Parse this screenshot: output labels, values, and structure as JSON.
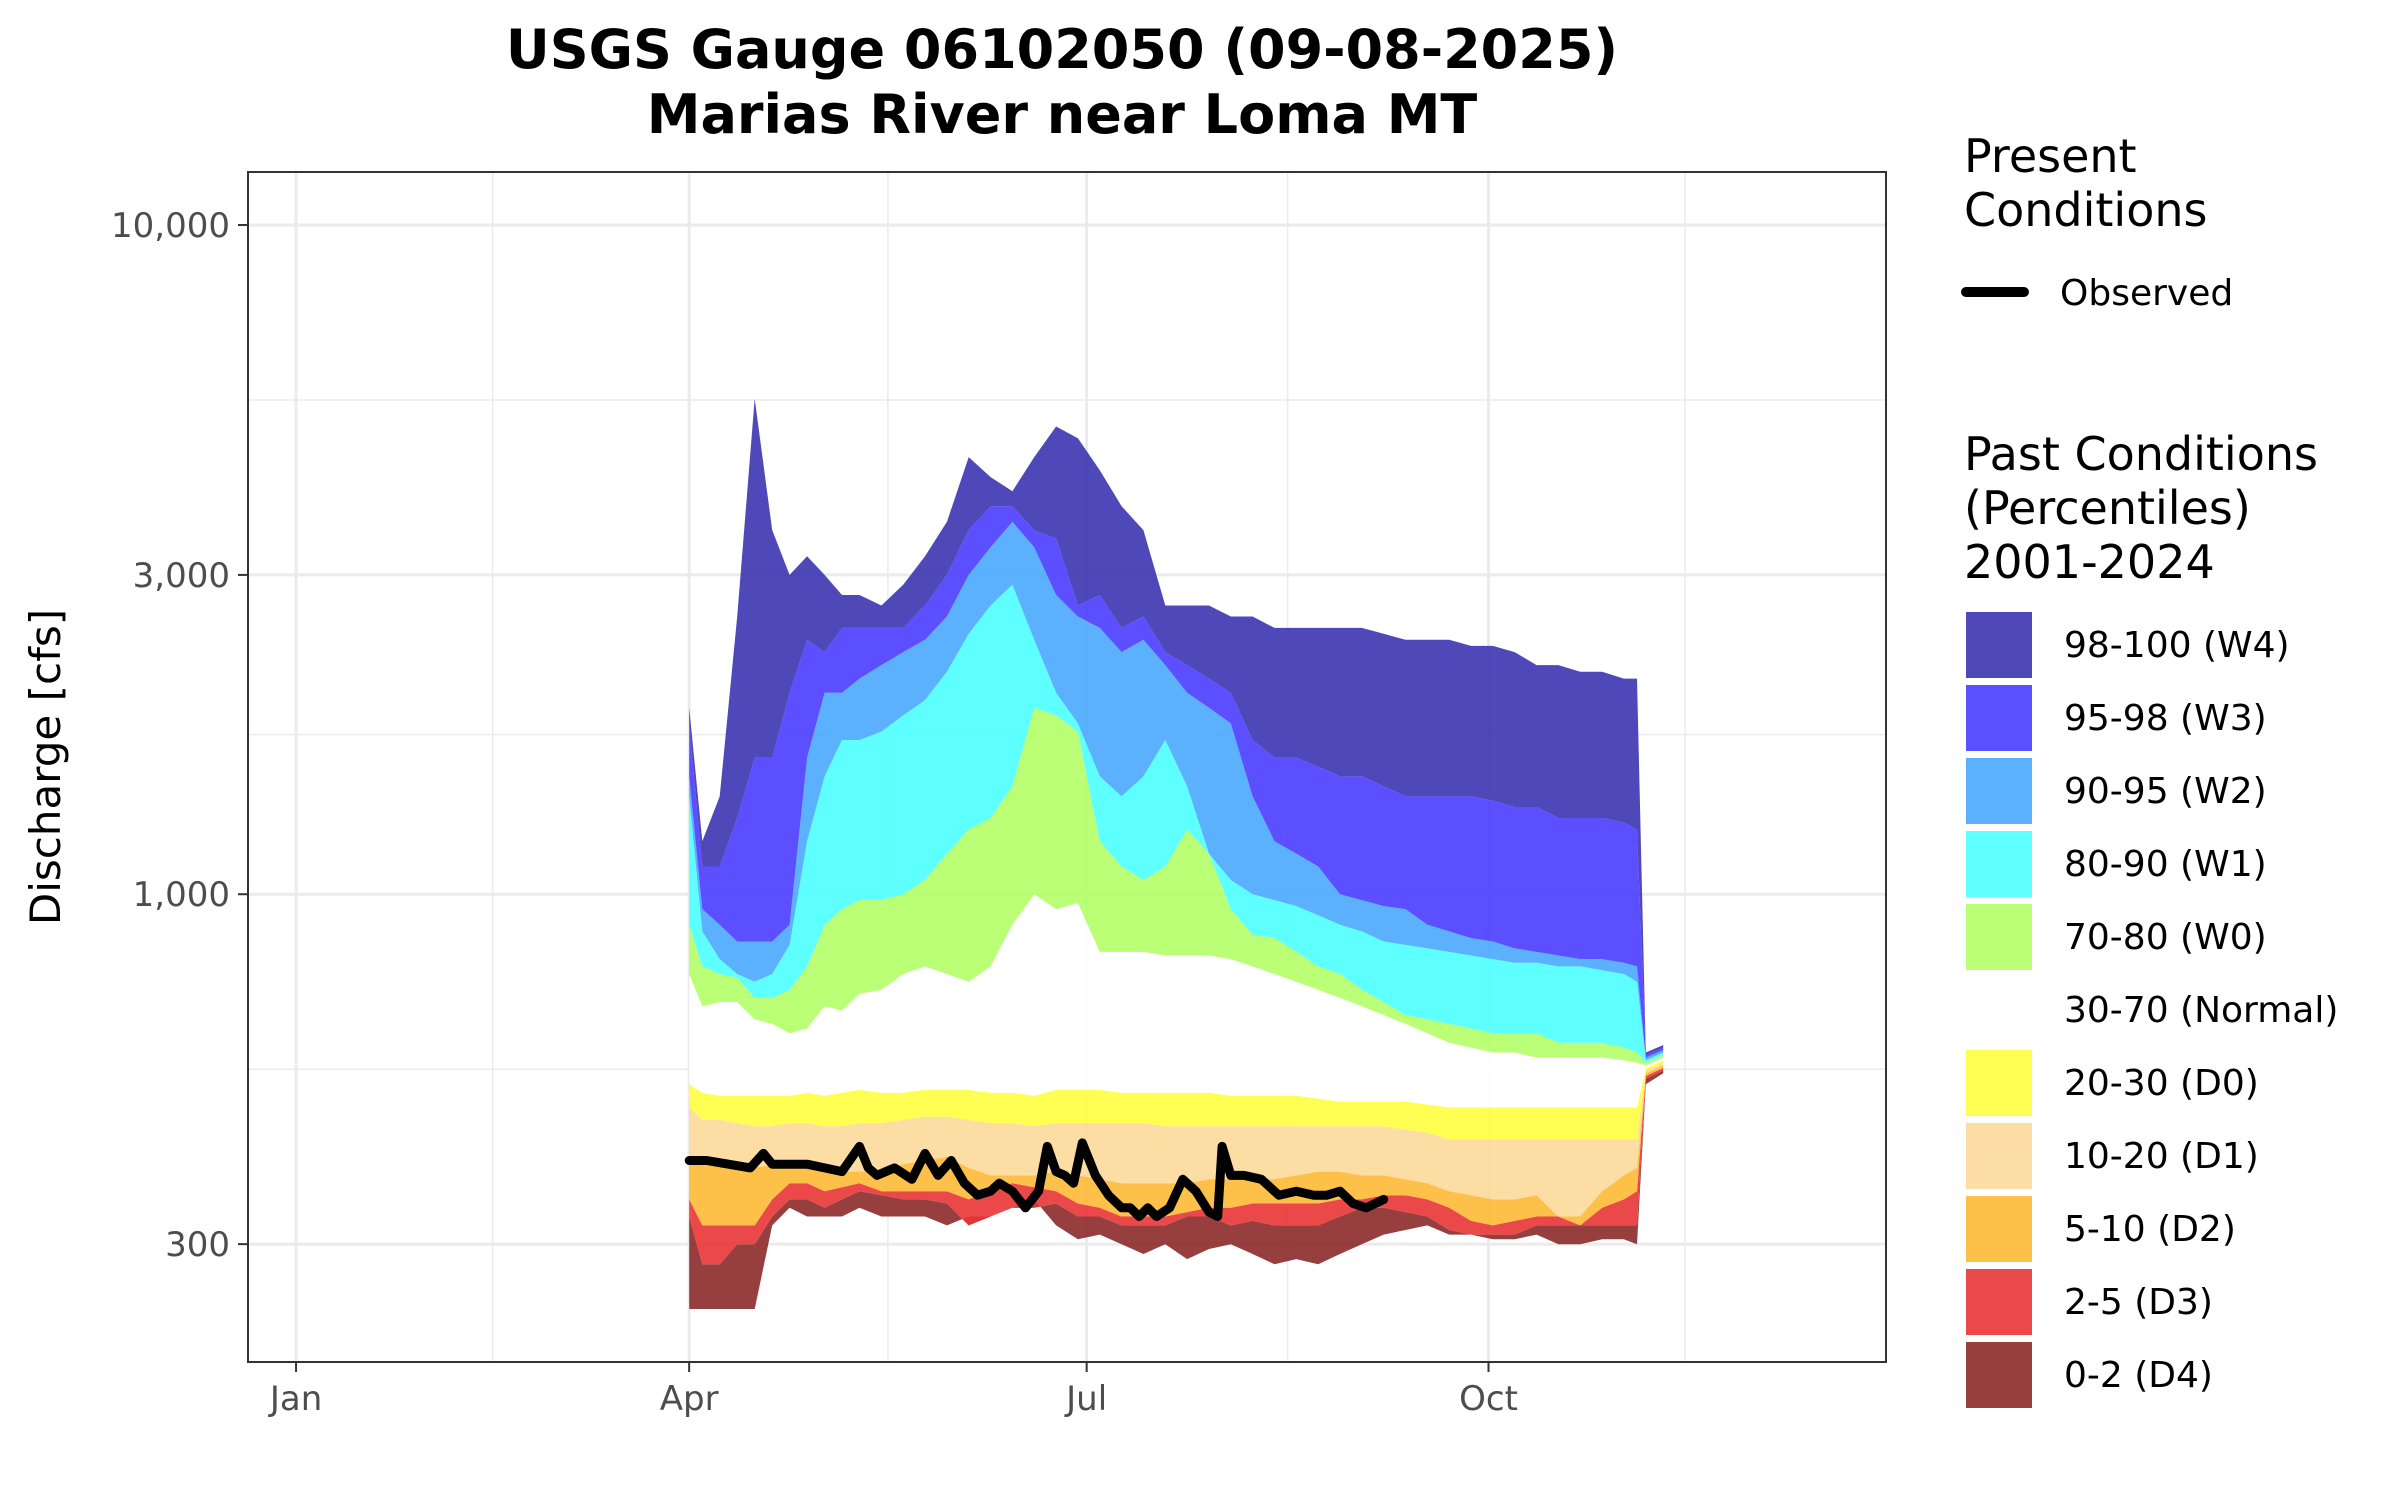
{
  "chart_data": {
    "type": "area",
    "title_line1": "USGS Gauge 06102050 (09-08-2025)",
    "title_line2": "Marias River near Loma MT",
    "ylabel": "Discharge [cfs]",
    "xlabel": "",
    "y_scale": "log",
    "ylim": [
      200,
      12000
    ],
    "xlim_doy": [
      -10,
      365
    ],
    "grid": true,
    "legend_position": "right",
    "x_ticks": [
      {
        "label": "Jan",
        "doy": 1
      },
      {
        "label": "Apr",
        "doy": 91
      },
      {
        "label": "Jul",
        "doy": 182
      },
      {
        "label": "Oct",
        "doy": 274
      }
    ],
    "y_ticks": [
      {
        "label": "10,000",
        "value": 10000
      },
      {
        "label": "3,000",
        "value": 3000
      },
      {
        "label": "1,000",
        "value": 1000
      },
      {
        "label": "300",
        "value": 300
      }
    ],
    "legend_present_title": "Present\nConditions",
    "legend_observed_label": "Observed",
    "legend_past_title": "Past Conditions\n(Percentiles)\n2001-2024",
    "bands": [
      {
        "label": "98-100 (W4)",
        "color": "#3b34b0"
      },
      {
        "label": "95-98 (W3)",
        "color": "#4a3cff"
      },
      {
        "label": "90-95 (W2)",
        "color": "#4aa8ff"
      },
      {
        "label": "80-90 (W1)",
        "color": "#4dffff"
      },
      {
        "label": "70-80 (W0)",
        "color": "#b2ff66"
      },
      {
        "label": "30-70 (Normal)",
        "color": "#ffffff"
      },
      {
        "label": "20-30 (D0)",
        "color": "#ffff40"
      },
      {
        "label": "10-20 (D1)",
        "color": "#fcd999"
      },
      {
        "label": "5-10 (D2)",
        "color": "#fdb935"
      },
      {
        "label": "2-5 (D3)",
        "color": "#e93535"
      },
      {
        "label": "0-2 (D4)",
        "color": "#8c2a2a"
      }
    ],
    "percentile_x_doy": [
      91,
      94,
      98,
      102,
      106,
      110,
      114,
      118,
      122,
      126,
      130,
      135,
      140,
      145,
      150,
      155,
      160,
      165,
      170,
      175,
      180,
      185,
      190,
      195,
      200,
      205,
      210,
      215,
      220,
      225,
      230,
      235,
      240,
      245,
      250,
      255,
      260,
      265,
      270,
      275,
      280,
      285,
      290,
      295,
      300,
      305,
      308,
      310,
      314
    ],
    "percentile_bounds": {
      "p0": [
        240,
        240,
        240,
        240,
        240,
        320,
        340,
        330,
        330,
        330,
        340,
        330,
        330,
        330,
        320,
        330,
        330,
        340,
        350,
        320,
        305,
        310,
        300,
        290,
        300,
        285,
        295,
        300,
        290,
        280,
        285,
        280,
        290,
        300,
        310,
        315,
        320,
        310,
        310,
        305,
        305,
        310,
        300,
        300,
        305,
        305,
        300,
        520,
        540
      ],
      "p2": [
        330,
        280,
        280,
        300,
        300,
        330,
        350,
        350,
        340,
        350,
        360,
        355,
        350,
        350,
        345,
        320,
        330,
        340,
        340,
        345,
        330,
        330,
        320,
        320,
        320,
        330,
        330,
        320,
        325,
        320,
        320,
        320,
        330,
        340,
        340,
        335,
        330,
        315,
        310,
        310,
        310,
        320,
        320,
        320,
        320,
        320,
        320,
        530,
        545
      ],
      "p5": [
        350,
        320,
        320,
        320,
        320,
        350,
        370,
        370,
        360,
        365,
        370,
        360,
        360,
        360,
        360,
        350,
        360,
        370,
        365,
        360,
        345,
        340,
        330,
        330,
        330,
        335,
        340,
        340,
        345,
        345,
        345,
        345,
        350,
        350,
        355,
        355,
        350,
        340,
        325,
        320,
        325,
        330,
        330,
        320,
        340,
        350,
        360,
        535,
        550
      ],
      "p10": [
        400,
        400,
        400,
        390,
        390,
        395,
        395,
        390,
        385,
        385,
        385,
        385,
        395,
        400,
        405,
        390,
        380,
        380,
        380,
        385,
        380,
        375,
        370,
        370,
        370,
        370,
        375,
        375,
        375,
        375,
        380,
        385,
        385,
        380,
        380,
        375,
        370,
        360,
        355,
        350,
        350,
        355,
        330,
        330,
        360,
        380,
        390,
        540,
        555
      ],
      "p20": [
        480,
        460,
        460,
        455,
        450,
        450,
        455,
        455,
        450,
        450,
        455,
        455,
        460,
        465,
        465,
        460,
        455,
        455,
        450,
        455,
        455,
        455,
        455,
        455,
        450,
        450,
        450,
        450,
        450,
        450,
        450,
        450,
        450,
        450,
        450,
        445,
        440,
        430,
        430,
        430,
        430,
        430,
        430,
        430,
        430,
        430,
        430,
        545,
        560
      ],
      "p30": [
        520,
        505,
        500,
        500,
        500,
        500,
        500,
        505,
        500,
        505,
        510,
        505,
        505,
        510,
        510,
        510,
        505,
        505,
        500,
        510,
        510,
        510,
        505,
        505,
        505,
        505,
        505,
        500,
        500,
        500,
        500,
        495,
        490,
        490,
        490,
        490,
        485,
        480,
        480,
        480,
        480,
        480,
        480,
        480,
        480,
        480,
        480,
        550,
        565
      ],
      "p70": [
        760,
        680,
        690,
        690,
        650,
        640,
        620,
        630,
        680,
        670,
        710,
        720,
        760,
        780,
        760,
        740,
        780,
        900,
        1000,
        950,
        970,
        820,
        820,
        820,
        810,
        810,
        810,
        800,
        780,
        760,
        740,
        720,
        700,
        680,
        660,
        640,
        620,
        600,
        590,
        580,
        580,
        570,
        570,
        570,
        570,
        565,
        560,
        555,
        570
      ],
      "p80": [
        900,
        780,
        760,
        750,
        700,
        700,
        720,
        780,
        900,
        950,
        980,
        980,
        1000,
        1050,
        1150,
        1250,
        1300,
        1450,
        1900,
        1850,
        1750,
        1200,
        1100,
        1050,
        1100,
        1250,
        1150,
        950,
        870,
        860,
        820,
        780,
        760,
        720,
        690,
        660,
        650,
        640,
        630,
        620,
        620,
        620,
        600,
        600,
        600,
        590,
        580,
        560,
        575
      ],
      "p90": [
        1400,
        880,
        800,
        760,
        740,
        760,
        840,
        1200,
        1500,
        1700,
        1700,
        1750,
        1850,
        1950,
        2150,
        2450,
        2700,
        2900,
        2400,
        2000,
        1800,
        1500,
        1400,
        1500,
        1700,
        1450,
        1150,
        1050,
        1000,
        980,
        960,
        930,
        900,
        880,
        850,
        840,
        830,
        820,
        810,
        800,
        790,
        790,
        780,
        780,
        770,
        760,
        740,
        565,
        580
      ],
      "p95": [
        1500,
        950,
        900,
        850,
        850,
        850,
        900,
        1600,
        2000,
        2000,
        2100,
        2200,
        2300,
        2400,
        2600,
        3000,
        3300,
        3600,
        3300,
        2800,
        2600,
        2500,
        2300,
        2400,
        2200,
        2000,
        1900,
        1800,
        1400,
        1200,
        1150,
        1100,
        1000,
        980,
        960,
        950,
        900,
        880,
        860,
        850,
        830,
        820,
        810,
        800,
        800,
        790,
        780,
        570,
        585
      ],
      "p98": [
        1800,
        1100,
        1100,
        1300,
        1600,
        1600,
        2000,
        2400,
        2300,
        2500,
        2500,
        2500,
        2500,
        2700,
        3000,
        3500,
        3800,
        3800,
        3500,
        3400,
        2700,
        2800,
        2500,
        2600,
        2300,
        2200,
        2100,
        2000,
        1700,
        1600,
        1600,
        1550,
        1500,
        1500,
        1450,
        1400,
        1400,
        1400,
        1400,
        1380,
        1350,
        1350,
        1300,
        1300,
        1300,
        1280,
        1250,
        575,
        590
      ],
      "p100": [
        1900,
        1200,
        1400,
        2600,
        5500,
        3500,
        3000,
        3200,
        3000,
        2800,
        2800,
        2700,
        2900,
        3200,
        3600,
        4500,
        4200,
        4000,
        4500,
        5000,
        4800,
        4300,
        3800,
        3500,
        2700,
        2700,
        2700,
        2600,
        2600,
        2500,
        2500,
        2500,
        2500,
        2500,
        2450,
        2400,
        2400,
        2400,
        2350,
        2350,
        2300,
        2200,
        2200,
        2150,
        2150,
        2100,
        2100,
        580,
        595
      ]
    },
    "observed": {
      "name": "Observed",
      "x_doy": [
        91,
        95,
        100,
        105,
        108,
        110,
        113,
        118,
        122,
        126,
        130,
        132,
        134,
        138,
        142,
        145,
        148,
        151,
        154,
        157,
        160,
        162,
        165,
        168,
        171,
        173,
        175,
        177,
        179,
        181,
        184,
        187,
        190,
        192,
        194,
        196,
        198,
        201,
        204,
        207,
        210,
        212,
        213,
        215,
        218,
        222,
        226,
        230,
        234,
        237,
        240,
        243,
        246,
        250
      ],
      "y": [
        400,
        400,
        395,
        390,
        410,
        395,
        395,
        395,
        390,
        385,
        420,
        390,
        380,
        390,
        375,
        410,
        380,
        400,
        370,
        355,
        360,
        370,
        360,
        340,
        360,
        420,
        385,
        380,
        370,
        425,
        380,
        355,
        340,
        340,
        330,
        340,
        330,
        340,
        375,
        360,
        335,
        330,
        420,
        380,
        380,
        375,
        355,
        360,
        355,
        355,
        360,
        345,
        340,
        350
      ]
    }
  }
}
